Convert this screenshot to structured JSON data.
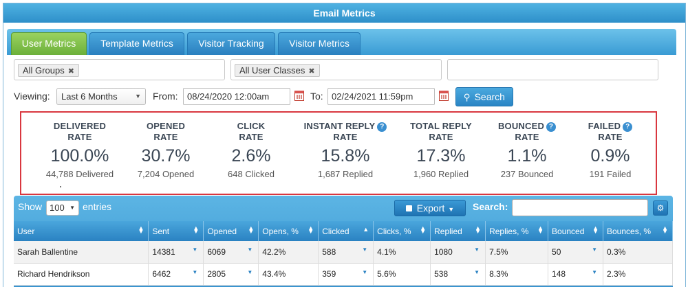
{
  "window": {
    "title": "Email Metrics"
  },
  "tabs": [
    {
      "label": "User Metrics",
      "active": true
    },
    {
      "label": "Template Metrics",
      "active": false
    },
    {
      "label": "Visitor Tracking",
      "active": false
    },
    {
      "label": "Visitor Metrics",
      "active": false
    }
  ],
  "filters": {
    "groups_chip": "All Groups",
    "classes_chip": "All User Classes",
    "remove_glyph": "✖"
  },
  "viewing": {
    "label": "Viewing:",
    "selected": "Last 6 Months",
    "from_label": "From:",
    "from_value": "08/24/2020 12:00am",
    "to_label": "To:",
    "to_value": "02/24/2021 11:59pm",
    "search_label": "Search"
  },
  "metrics": [
    {
      "title1": "DELIVERED",
      "title2": "RATE",
      "value": "100.0%",
      "sub": "44,788 Delivered",
      "help": false
    },
    {
      "title1": "OPENED",
      "title2": "RATE",
      "value": "30.7%",
      "sub": "7,204 Opened",
      "help": false
    },
    {
      "title1": "CLICK",
      "title2": "RATE",
      "value": "2.6%",
      "sub": "648 Clicked",
      "help": false
    },
    {
      "title1": "INSTANT REPLY",
      "title2": "RATE",
      "value": "15.8%",
      "sub": "1,687 Replied",
      "help": true
    },
    {
      "title1": "TOTAL REPLY",
      "title2": "RATE",
      "value": "17.3%",
      "sub": "1,960 Replied",
      "help": false
    },
    {
      "title1": "BOUNCED",
      "title2": "RATE",
      "value": "1.1%",
      "sub": "237 Bounced",
      "help": true
    },
    {
      "title1": "FAILED",
      "title2": "RATE",
      "value": "0.9%",
      "sub": "191 Failed",
      "help": true
    }
  ],
  "grid": {
    "show_label": "Show",
    "entries_value": "100",
    "entries_label": "entries",
    "export_label": "Export",
    "search_label": "Search:",
    "columns": [
      "User",
      "Sent",
      "Opened",
      "Opens, %",
      "Clicked",
      "Clicks, %",
      "Replied",
      "Replies, %",
      "Bounced",
      "Bounces, %"
    ],
    "sorted_column": "Clicked",
    "rows": [
      {
        "user": "Sarah Ballentine",
        "sent": "14381",
        "opened": "6069",
        "opens_pct": "42.2%",
        "clicked": "588",
        "clicks_pct": "4.1%",
        "replied": "1080",
        "replies_pct": "7.5%",
        "bounced": "50",
        "bounces_pct": "0.3%"
      },
      {
        "user": "Richard Hendrikson",
        "sent": "6462",
        "opened": "2805",
        "opens_pct": "43.4%",
        "clicked": "359",
        "clicks_pct": "5.6%",
        "replied": "538",
        "replies_pct": "8.3%",
        "bounced": "148",
        "bounces_pct": "2.3%"
      }
    ]
  },
  "colors": {
    "active_tab": "#7cbf45",
    "tab_blue": "#3a9bd4",
    "metrics_border": "#d9373f",
    "help_icon": "#3a8fd0"
  }
}
